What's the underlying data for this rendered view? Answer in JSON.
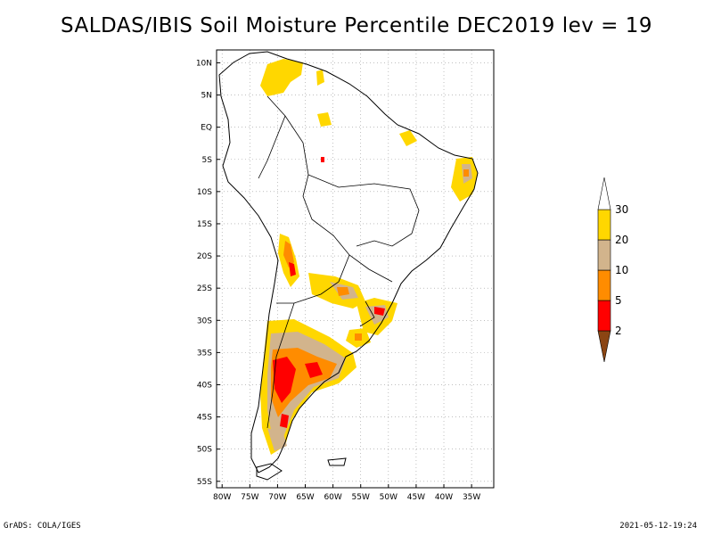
{
  "title": "SALDAS/IBIS Soil Moisture Percentile DEC2019 lev = 19",
  "footer": {
    "credit": "GrADS: COLA/IGES",
    "timestamp": "2021-05-12-19:24"
  },
  "map": {
    "lon_range": [
      -81,
      -31
    ],
    "lat_range": [
      -56,
      12
    ],
    "lat_ticks": [
      {
        "value": 10,
        "label": "10N"
      },
      {
        "value": 5,
        "label": "5N"
      },
      {
        "value": 0,
        "label": "EQ"
      },
      {
        "value": -5,
        "label": "5S"
      },
      {
        "value": -10,
        "label": "10S"
      },
      {
        "value": -15,
        "label": "15S"
      },
      {
        "value": -20,
        "label": "20S"
      },
      {
        "value": -25,
        "label": "25S"
      },
      {
        "value": -30,
        "label": "30S"
      },
      {
        "value": -35,
        "label": "35S"
      },
      {
        "value": -40,
        "label": "40S"
      },
      {
        "value": -45,
        "label": "45S"
      },
      {
        "value": -50,
        "label": "50S"
      },
      {
        "value": -55,
        "label": "55S"
      }
    ],
    "lon_ticks": [
      {
        "value": -80,
        "label": "80W"
      },
      {
        "value": -75,
        "label": "75W"
      },
      {
        "value": -70,
        "label": "70W"
      },
      {
        "value": -65,
        "label": "65W"
      },
      {
        "value": -60,
        "label": "60W"
      },
      {
        "value": -55,
        "label": "55W"
      },
      {
        "value": -50,
        "label": "50W"
      },
      {
        "value": -45,
        "label": "45W"
      },
      {
        "value": -40,
        "label": "40W"
      },
      {
        "value": -35,
        "label": "35W"
      }
    ]
  },
  "colorbar": {
    "labels": [
      "2",
      "5",
      "10",
      "20",
      "30"
    ],
    "colors": [
      "#8b4513",
      "#ff0000",
      "#ff8c00",
      "#d2b48c",
      "#ffd700",
      "#ffffff"
    ]
  },
  "colors": {
    "red": "#ff0000",
    "orange": "#ff8c00",
    "tan": "#d2b48c",
    "yellow": "#ffd700"
  }
}
